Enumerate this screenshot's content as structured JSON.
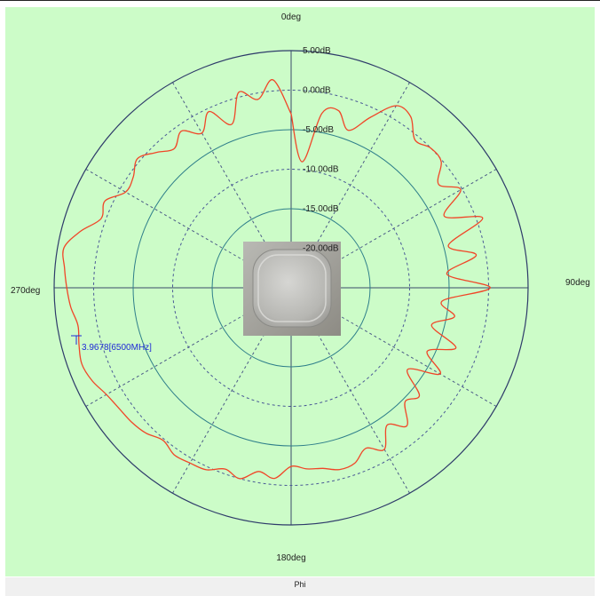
{
  "chart_data": {
    "type": "polar-line",
    "angle_labels": [
      "0deg",
      "90deg",
      "180deg",
      "270deg"
    ],
    "radial_tick_labels": [
      "5.00dB",
      "0.00dB",
      "-5.00dB",
      "-10.00dB",
      "-15.00dB",
      "-20.00dB"
    ],
    "radial_range_db": [
      -25,
      5
    ],
    "angular_grid_step_deg": 30,
    "series": [
      {
        "color": "#f04628",
        "angles_deg": [
          0,
          5,
          10,
          15,
          20,
          25,
          30,
          35,
          40,
          45,
          50,
          55,
          60,
          65,
          70,
          75,
          80,
          85,
          90,
          95,
          100,
          105,
          110,
          115,
          120,
          125,
          130,
          135,
          140,
          145,
          150,
          155,
          160,
          165,
          170,
          175,
          180,
          185,
          190,
          195,
          200,
          205,
          210,
          215,
          220,
          225,
          230,
          235,
          240,
          245,
          250,
          255,
          260,
          265,
          270,
          275,
          280,
          285,
          290,
          295,
          300,
          305,
          310,
          315,
          320,
          325,
          330,
          335,
          340,
          345,
          350,
          355
        ],
        "values_db": [
          -3.0,
          -9.0,
          -2.6,
          -1.8,
          -3.8,
          -1.2,
          1.6,
          1.4,
          -0.6,
          0.0,
          -0.2,
          -2.2,
          -0.2,
          -3.6,
          0.8,
          -4.4,
          -1.2,
          -5.2,
          0.2,
          -5.8,
          -4.0,
          -6.6,
          -2.8,
          -6.0,
          -3.2,
          -7.0,
          -3.8,
          -4.6,
          -2.2,
          -3.8,
          -1.4,
          -2.6,
          -1.4,
          -1.2,
          -1.8,
          -2.0,
          -2.4,
          -0.8,
          -1.4,
          0.0,
          -0.6,
          0.4,
          0.6,
          0.8,
          0.2,
          1.0,
          1.4,
          1.6,
          2.0,
          2.8,
          3.2,
          2.8,
          2.4,
          3.0,
          3.4,
          3.8,
          4.2,
          2.6,
          0.6,
          1.0,
          -0.8,
          -0.6,
          0.4,
          -0.8,
          -2.0,
          -0.8,
          -2.4,
          -0.4,
          -3.0,
          0.6,
          -0.8,
          1.4
        ]
      }
    ],
    "marker": {
      "angle_deg": 284,
      "label": "3.9678[6500MHz]"
    }
  },
  "footer": {
    "label": "Phi"
  },
  "image": {
    "description": "photo of square white antenna device"
  }
}
